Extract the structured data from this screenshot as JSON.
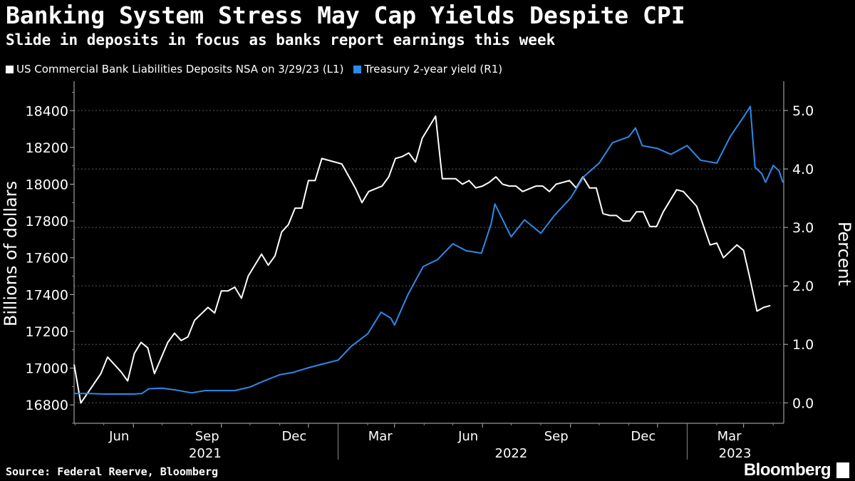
{
  "title": "Banking System Stress May Cap Yields Despite CPI",
  "subtitle": "Slide in deposits in focus as banks report earnings this week",
  "source": "Source: Federal Reerve, Bloomberg",
  "brand": "Bloomberg",
  "chart_data": {
    "type": "line",
    "title": "Banking System Stress May Cap Yields Despite CPI",
    "subtitle": "Slide in deposits in focus as banks report earnings this week",
    "x_range": [
      "2021-03-31",
      "2023-04-12"
    ],
    "x_tick_labels": [
      "Jun",
      "Sep",
      "Dec",
      "Mar",
      "Jun",
      "Sep",
      "Dec",
      "Mar"
    ],
    "x_tick_dates": [
      "2021-06-01",
      "2021-09-01",
      "2021-12-01",
      "2022-03-01",
      "2022-06-01",
      "2022-09-01",
      "2022-12-01",
      "2023-03-01"
    ],
    "x_year_labels": [
      "2021",
      "2022",
      "2023"
    ],
    "y_left": {
      "label": "Billions of dollars",
      "range": [
        16700,
        18560
      ],
      "ticks": [
        16800,
        17000,
        17200,
        17400,
        17600,
        17800,
        18000,
        18200,
        18400
      ]
    },
    "y_right": {
      "label": "Percent",
      "range": [
        -0.35,
        5.5
      ],
      "ticks": [
        "0.0",
        "1.0",
        "2.0",
        "3.0",
        "4.0",
        "5.0"
      ]
    },
    "grid": true,
    "legend_placement": "top-left",
    "series": [
      {
        "name": "US Commercial Bank Liabilities Deposits NSA on 3/29/23 (L1)",
        "axis": "left",
        "color": "#ffffff",
        "points": [
          [
            "2021-03-31",
            17020
          ],
          [
            "2021-04-07",
            16810
          ],
          [
            "2021-04-28",
            16970
          ],
          [
            "2021-05-05",
            17060
          ],
          [
            "2021-05-19",
            16980
          ],
          [
            "2021-05-26",
            16930
          ],
          [
            "2021-06-02",
            17080
          ],
          [
            "2021-06-09",
            17140
          ],
          [
            "2021-06-16",
            17110
          ],
          [
            "2021-06-23",
            16970
          ],
          [
            "2021-07-07",
            17140
          ],
          [
            "2021-07-14",
            17190
          ],
          [
            "2021-07-21",
            17150
          ],
          [
            "2021-07-28",
            17170
          ],
          [
            "2021-08-04",
            17260
          ],
          [
            "2021-08-18",
            17330
          ],
          [
            "2021-08-25",
            17300
          ],
          [
            "2021-09-01",
            17420
          ],
          [
            "2021-09-08",
            17420
          ],
          [
            "2021-09-15",
            17440
          ],
          [
            "2021-09-22",
            17380
          ],
          [
            "2021-09-29",
            17500
          ],
          [
            "2021-10-13",
            17620
          ],
          [
            "2021-10-20",
            17560
          ],
          [
            "2021-10-27",
            17610
          ],
          [
            "2021-11-03",
            17740
          ],
          [
            "2021-11-10",
            17780
          ],
          [
            "2021-11-17",
            17870
          ],
          [
            "2021-11-24",
            17870
          ],
          [
            "2021-12-01",
            18020
          ],
          [
            "2021-12-08",
            18020
          ],
          [
            "2021-12-15",
            18140
          ],
          [
            "2021-12-22",
            18130
          ],
          [
            "2021-12-29",
            18120
          ],
          [
            "2022-01-05",
            18110
          ],
          [
            "2022-01-19",
            17980
          ],
          [
            "2022-01-26",
            17900
          ],
          [
            "2022-02-02",
            17960
          ],
          [
            "2022-02-16",
            17990
          ],
          [
            "2022-02-23",
            18040
          ],
          [
            "2022-03-02",
            18140
          ],
          [
            "2022-03-09",
            18150
          ],
          [
            "2022-03-16",
            18170
          ],
          [
            "2022-03-23",
            18120
          ],
          [
            "2022-03-30",
            18250
          ],
          [
            "2022-04-06",
            18310
          ],
          [
            "2022-04-13",
            18370
          ],
          [
            "2022-04-20",
            18030
          ],
          [
            "2022-05-04",
            18030
          ],
          [
            "2022-05-11",
            18000
          ],
          [
            "2022-05-18",
            18020
          ],
          [
            "2022-05-25",
            17980
          ],
          [
            "2022-06-01",
            17990
          ],
          [
            "2022-06-08",
            18010
          ],
          [
            "2022-06-15",
            18040
          ],
          [
            "2022-06-22",
            18000
          ],
          [
            "2022-06-29",
            17990
          ],
          [
            "2022-07-06",
            17990
          ],
          [
            "2022-07-13",
            17960
          ],
          [
            "2022-07-27",
            17990
          ],
          [
            "2022-08-03",
            17990
          ],
          [
            "2022-08-10",
            17960
          ],
          [
            "2022-08-17",
            18000
          ],
          [
            "2022-08-31",
            18020
          ],
          [
            "2022-09-07",
            17980
          ],
          [
            "2022-09-14",
            18040
          ],
          [
            "2022-09-21",
            17980
          ],
          [
            "2022-09-28",
            17980
          ],
          [
            "2022-10-05",
            17840
          ],
          [
            "2022-10-12",
            17830
          ],
          [
            "2022-10-19",
            17830
          ],
          [
            "2022-10-26",
            17800
          ],
          [
            "2022-11-02",
            17800
          ],
          [
            "2022-11-09",
            17850
          ],
          [
            "2022-11-16",
            17850
          ],
          [
            "2022-11-23",
            17770
          ],
          [
            "2022-11-30",
            17770
          ],
          [
            "2022-12-07",
            17850
          ],
          [
            "2022-12-14",
            17910
          ],
          [
            "2022-12-21",
            17970
          ],
          [
            "2022-12-28",
            17960
          ],
          [
            "2023-01-04",
            17920
          ],
          [
            "2023-01-11",
            17880
          ],
          [
            "2023-01-25",
            17670
          ],
          [
            "2023-02-01",
            17680
          ],
          [
            "2023-02-08",
            17600
          ],
          [
            "2023-02-22",
            17670
          ],
          [
            "2023-03-01",
            17640
          ],
          [
            "2023-03-08",
            17480
          ],
          [
            "2023-03-15",
            17310
          ],
          [
            "2023-03-22",
            17330
          ],
          [
            "2023-03-29",
            17340
          ]
        ]
      },
      {
        "name": "Treasury 2-year yield (R1)",
        "axis": "right",
        "color": "#2d8ae8",
        "points": [
          [
            "2021-03-31",
            0.16
          ],
          [
            "2021-04-15",
            0.16
          ],
          [
            "2021-05-01",
            0.15
          ],
          [
            "2021-05-15",
            0.15
          ],
          [
            "2021-06-01",
            0.15
          ],
          [
            "2021-06-10",
            0.16
          ],
          [
            "2021-06-17",
            0.24
          ],
          [
            "2021-07-01",
            0.25
          ],
          [
            "2021-07-15",
            0.22
          ],
          [
            "2021-08-01",
            0.17
          ],
          [
            "2021-08-15",
            0.21
          ],
          [
            "2021-09-01",
            0.21
          ],
          [
            "2021-09-15",
            0.21
          ],
          [
            "2021-10-01",
            0.27
          ],
          [
            "2021-10-15",
            0.37
          ],
          [
            "2021-11-01",
            0.48
          ],
          [
            "2021-11-15",
            0.52
          ],
          [
            "2021-12-01",
            0.6
          ],
          [
            "2021-12-15",
            0.66
          ],
          [
            "2022-01-01",
            0.73
          ],
          [
            "2022-01-15",
            0.97
          ],
          [
            "2022-02-01",
            1.18
          ],
          [
            "2022-02-15",
            1.55
          ],
          [
            "2022-02-25",
            1.45
          ],
          [
            "2022-03-01",
            1.33
          ],
          [
            "2022-03-15",
            1.85
          ],
          [
            "2022-03-31",
            2.33
          ],
          [
            "2022-04-15",
            2.45
          ],
          [
            "2022-05-01",
            2.72
          ],
          [
            "2022-05-15",
            2.6
          ],
          [
            "2022-05-31",
            2.56
          ],
          [
            "2022-06-10",
            3.06
          ],
          [
            "2022-06-14",
            3.4
          ],
          [
            "2022-06-20",
            3.2
          ],
          [
            "2022-07-01",
            2.84
          ],
          [
            "2022-07-15",
            3.13
          ],
          [
            "2022-08-01",
            2.9
          ],
          [
            "2022-08-15",
            3.2
          ],
          [
            "2022-09-01",
            3.5
          ],
          [
            "2022-09-15",
            3.87
          ],
          [
            "2022-10-01",
            4.1
          ],
          [
            "2022-10-15",
            4.45
          ],
          [
            "2022-11-01",
            4.55
          ],
          [
            "2022-11-08",
            4.7
          ],
          [
            "2022-11-15",
            4.4
          ],
          [
            "2022-12-01",
            4.35
          ],
          [
            "2022-12-15",
            4.25
          ],
          [
            "2023-01-01",
            4.4
          ],
          [
            "2023-01-15",
            4.15
          ],
          [
            "2023-02-01",
            4.1
          ],
          [
            "2023-02-15",
            4.55
          ],
          [
            "2023-03-01",
            4.89
          ],
          [
            "2023-03-08",
            5.07
          ],
          [
            "2023-03-13",
            4.03
          ],
          [
            "2023-03-20",
            3.92
          ],
          [
            "2023-03-24",
            3.77
          ],
          [
            "2023-04-01",
            4.06
          ],
          [
            "2023-04-07",
            3.97
          ],
          [
            "2023-04-11",
            3.77
          ]
        ]
      }
    ]
  }
}
